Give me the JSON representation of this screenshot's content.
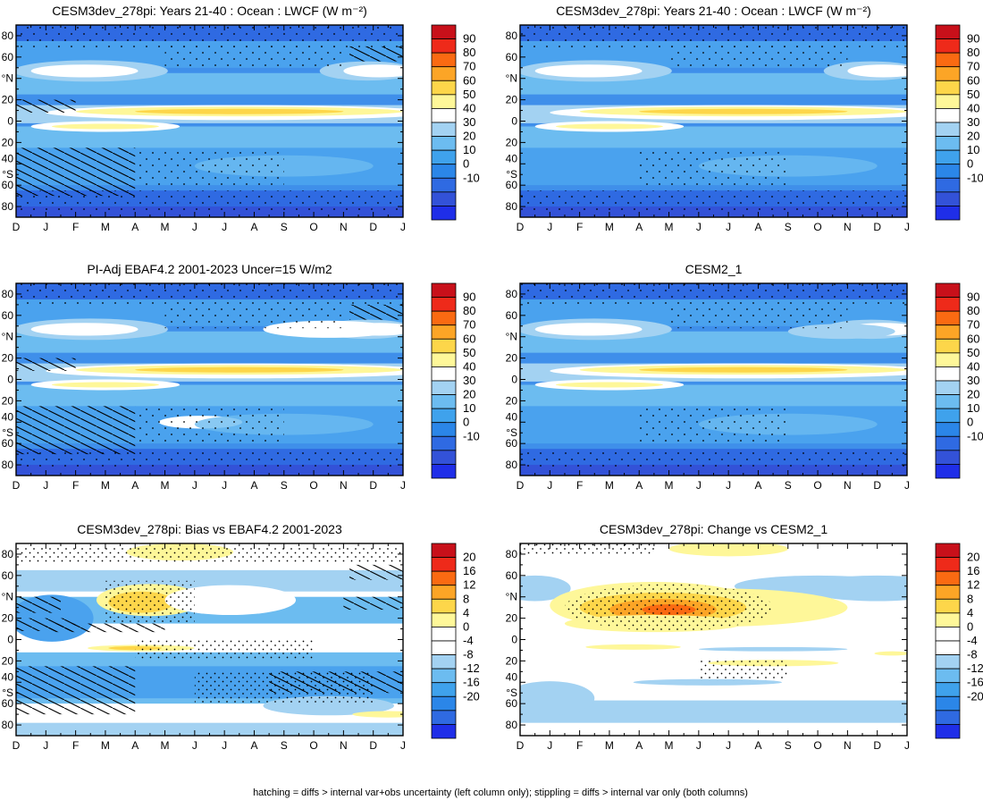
{
  "footer": "hatching = diffs > internal var+obs uncertainty (left column only); stippling = diffs > internal var only (both columns)",
  "months": [
    "D",
    "J",
    "F",
    "M",
    "A",
    "M",
    "J",
    "J",
    "A",
    "S",
    "O",
    "N",
    "D",
    "J"
  ],
  "lat_ticks": [
    "80",
    "60",
    "°N",
    "20",
    "0",
    "20",
    "40",
    "°S",
    "60",
    "80"
  ],
  "colorbar_main": {
    "labels": [
      "90",
      "80",
      "70",
      "60",
      "50",
      "40",
      "30",
      "20",
      "10",
      "0",
      "-10"
    ],
    "colors": [
      "#c8101a",
      "#ee2a1a",
      "#fa6a12",
      "#fca526",
      "#fdd64a",
      "#fef799",
      "#ffffff",
      "#a3d2f2",
      "#6cbcf0",
      "#3fa2ec",
      "#2b86e8",
      "#2f6ae2",
      "#3352d8",
      "#1f2ee8"
    ]
  },
  "colorbar_diff": {
    "labels": [
      "20",
      "16",
      "12",
      "8",
      "4",
      "0",
      "-4",
      "-8",
      "-12",
      "-16",
      "-20"
    ],
    "colors": [
      "#c8101a",
      "#ee2a1a",
      "#fa6a12",
      "#fca526",
      "#fdd64a",
      "#fef799",
      "#ffffff",
      "#ffffff",
      "#a3d2f2",
      "#6cbcf0",
      "#3fa2ec",
      "#2b86e8",
      "#2f6ae2",
      "#1f2ee8"
    ]
  },
  "panels": [
    {
      "id": "p1",
      "title": "CESM3dev_278pi: Years 21-40 : Ocean : LWCF (W m⁻²)",
      "kind": "model",
      "hatch": true,
      "stipple": "light"
    },
    {
      "id": "p2",
      "title": "CESM3dev_278pi: Years 21-40 : Ocean : LWCF (W m⁻²)",
      "kind": "model",
      "hatch": false,
      "stipple": "light"
    },
    {
      "id": "p3",
      "title": "PI-Adj EBAF4.2 2001-2023 Uncer=15 W/m2",
      "kind": "obs",
      "hatch": true,
      "stipple": "light"
    },
    {
      "id": "p4",
      "title": "CESM2_1",
      "kind": "model2",
      "hatch": false,
      "stipple": "light"
    },
    {
      "id": "p5",
      "title": "CESM3dev_278pi: Bias vs EBAF4.2 2001-2023",
      "kind": "bias",
      "hatch": true,
      "stipple": "medium"
    },
    {
      "id": "p6",
      "title": "CESM3dev_278pi: Change vs CESM2_1",
      "kind": "change",
      "hatch": false,
      "stipple": "medium"
    }
  ],
  "chart_data": [
    {
      "type": "heatmap",
      "title": "CESM3dev_278pi: Years 21-40 : Ocean : LWCF (W m⁻²)",
      "x_ticks": [
        "D",
        "J",
        "F",
        "M",
        "A",
        "M",
        "J",
        "J",
        "A",
        "S",
        "O",
        "N",
        "D",
        "J"
      ],
      "y_range": [
        -90,
        90
      ],
      "color_range": [
        -10,
        90
      ],
      "max_zone": "yellow band near 5-10°N, Jun-Oct, ~45-55",
      "subtropics": "~15-30"
    },
    {
      "type": "heatmap",
      "title": "CESM3dev_278pi: Years 21-40 : Ocean : LWCF (W m⁻²)",
      "x_ticks": [
        "D",
        "J",
        "F",
        "M",
        "A",
        "M",
        "J",
        "J",
        "A",
        "S",
        "O",
        "N",
        "D",
        "J"
      ],
      "y_range": [
        -90,
        90
      ],
      "color_range": [
        -10,
        90
      ]
    },
    {
      "type": "heatmap",
      "title": "PI-Adj EBAF4.2 2001-2023 Uncer=15 W/m2",
      "x_ticks": [
        "D",
        "J",
        "F",
        "M",
        "A",
        "M",
        "J",
        "J",
        "A",
        "S",
        "O",
        "N",
        "D",
        "J"
      ],
      "y_range": [
        -90,
        90
      ],
      "color_range": [
        -10,
        90
      ]
    },
    {
      "type": "heatmap",
      "title": "CESM2_1",
      "x_ticks": [
        "D",
        "J",
        "F",
        "M",
        "A",
        "M",
        "J",
        "J",
        "A",
        "S",
        "O",
        "N",
        "D",
        "J"
      ],
      "y_range": [
        -90,
        90
      ],
      "color_range": [
        -10,
        90
      ]
    },
    {
      "type": "heatmap",
      "title": "CESM3dev_278pi: Bias vs EBAF4.2 2001-2023",
      "x_ticks": [
        "D",
        "J",
        "F",
        "M",
        "A",
        "M",
        "J",
        "J",
        "A",
        "S",
        "O",
        "N",
        "D",
        "J"
      ],
      "y_range": [
        -90,
        90
      ],
      "color_range": [
        -20,
        20
      ]
    },
    {
      "type": "heatmap",
      "title": "CESM3dev_278pi: Change vs CESM2_1",
      "x_ticks": [
        "D",
        "J",
        "F",
        "M",
        "A",
        "M",
        "J",
        "J",
        "A",
        "S",
        "O",
        "N",
        "D",
        "J"
      ],
      "y_range": [
        -90,
        90
      ],
      "color_range": [
        -20,
        20
      ],
      "max_zone": "orange ~12-16 near 30°N, Mar-May"
    }
  ]
}
